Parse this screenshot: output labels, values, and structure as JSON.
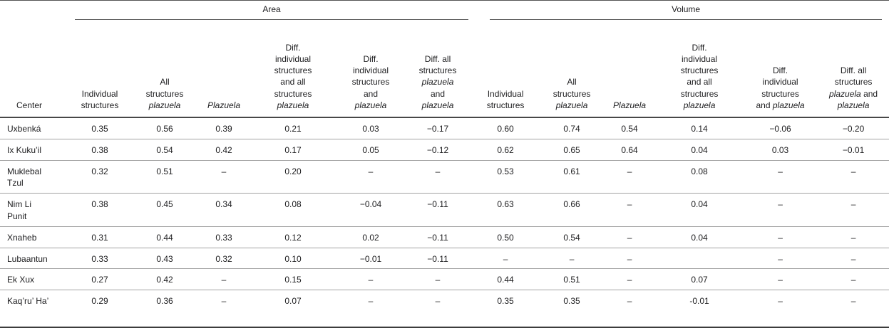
{
  "table": {
    "row_header": "Center",
    "groups": [
      {
        "label": "Area"
      },
      {
        "label": "Volume"
      }
    ],
    "column_labels": [
      "Individual structures",
      "All structures plazuela",
      "Plazuela",
      "Diff. individual structures and all structures plazuela",
      "Diff. individual structures and plazuela",
      "Diff. all structures plazuela and plazuela"
    ],
    "italic_words": [
      "plazuela",
      "Plazuela"
    ],
    "rows": [
      {
        "center": "Uxbenká",
        "area": [
          "0.35",
          "0.56",
          "0.39",
          "0.21",
          "0.03",
          "−0.17"
        ],
        "volume": [
          "0.60",
          "0.74",
          "0.54",
          "0.14",
          "−0.06",
          "−0.20"
        ]
      },
      {
        "center": "Ix Kuku’il",
        "area": [
          "0.38",
          "0.54",
          "0.42",
          "0.17",
          "0.05",
          "−0.12"
        ],
        "volume": [
          "0.62",
          "0.65",
          "0.64",
          "0.04",
          "0.03",
          "−0.01"
        ]
      },
      {
        "center": "Muklebal Tzul",
        "area": [
          "0.32",
          "0.51",
          "–",
          "0.20",
          "–",
          "–"
        ],
        "volume": [
          "0.53",
          "0.61",
          "–",
          "0.08",
          "–",
          "–"
        ]
      },
      {
        "center": "Nim Li Punit",
        "area": [
          "0.38",
          "0.45",
          "0.34",
          "0.08",
          "−0.04",
          "−0.11"
        ],
        "volume": [
          "0.63",
          "0.66",
          "–",
          "0.04",
          "–",
          "–"
        ]
      },
      {
        "center": "Xnaheb",
        "area": [
          "0.31",
          "0.44",
          "0.33",
          "0.12",
          "0.02",
          "−0.11"
        ],
        "volume": [
          "0.50",
          "0.54",
          "–",
          "0.04",
          "–",
          "–"
        ]
      },
      {
        "center": "Lubaantun",
        "area": [
          "0.33",
          "0.43",
          "0.32",
          "0.10",
          "−0.01",
          "−0.11"
        ],
        "volume": [
          "–",
          "–",
          "–",
          "",
          "–",
          "–"
        ]
      },
      {
        "center": "Ek Xux",
        "area": [
          "0.27",
          "0.42",
          "–",
          "0.15",
          "–",
          "–"
        ],
        "volume": [
          "0.44",
          "0.51",
          "–",
          "0.07",
          "–",
          "–"
        ]
      },
      {
        "center": "Kaq’ru’ Ha’",
        "area": [
          "0.29",
          "0.36",
          "–",
          "0.07",
          "–",
          "–"
        ],
        "volume": [
          "0.35",
          "0.35",
          "–",
          "-0.01",
          "–",
          "–"
        ]
      }
    ],
    "colors": {
      "rule_dark": "#474747",
      "rule_light": "#a3a3a3",
      "text": "#1d1d1f",
      "background": "#ffffff"
    }
  }
}
